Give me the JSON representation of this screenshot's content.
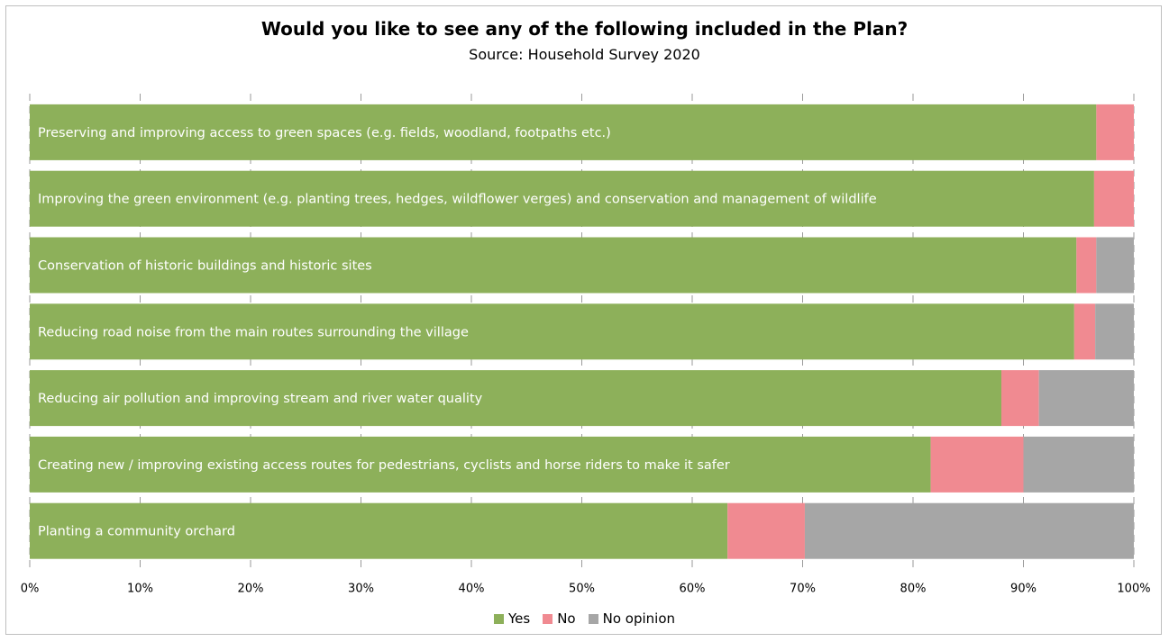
{
  "chart_data": {
    "type": "bar",
    "orientation": "horizontal",
    "stacked": true,
    "title": "Would you like to see any of the following included in the Plan?",
    "subtitle": "Source: Household Survey 2020",
    "categories": [
      "Preserving and improving access to green spaces (e.g. fields, woodland, footpaths etc.)",
      "Improving the green environment (e.g. planting trees, hedges, wildflower verges) and conservation and management of wildlife",
      "Conservation of historic buildings and historic sites",
      "Reducing road noise from the main routes surrounding the village",
      "Reducing air pollution and improving stream and river water quality",
      "Creating new / improving existing access routes for pedestrians, cyclists and horse riders to make it safer",
      "Planting a community orchard"
    ],
    "series": [
      {
        "name": "Yes",
        "color": "#8db05a",
        "values": [
          96.6,
          96.4,
          94.8,
          94.6,
          88.0,
          81.6,
          63.2
        ]
      },
      {
        "name": "No",
        "color": "#f08a91",
        "values": [
          3.4,
          3.6,
          1.8,
          1.9,
          3.4,
          8.4,
          7.0
        ]
      },
      {
        "name": "No opinion",
        "color": "#a6a6a6",
        "values": [
          0.0,
          0.0,
          3.4,
          3.5,
          8.6,
          10.0,
          29.8
        ]
      }
    ],
    "xlim": [
      0,
      100
    ],
    "xticks": [
      "0%",
      "10%",
      "20%",
      "30%",
      "40%",
      "50%",
      "60%",
      "70%",
      "80%",
      "90%",
      "100%"
    ],
    "xlabel": "",
    "ylabel": "",
    "grid": true,
    "legend_position": "bottom"
  }
}
